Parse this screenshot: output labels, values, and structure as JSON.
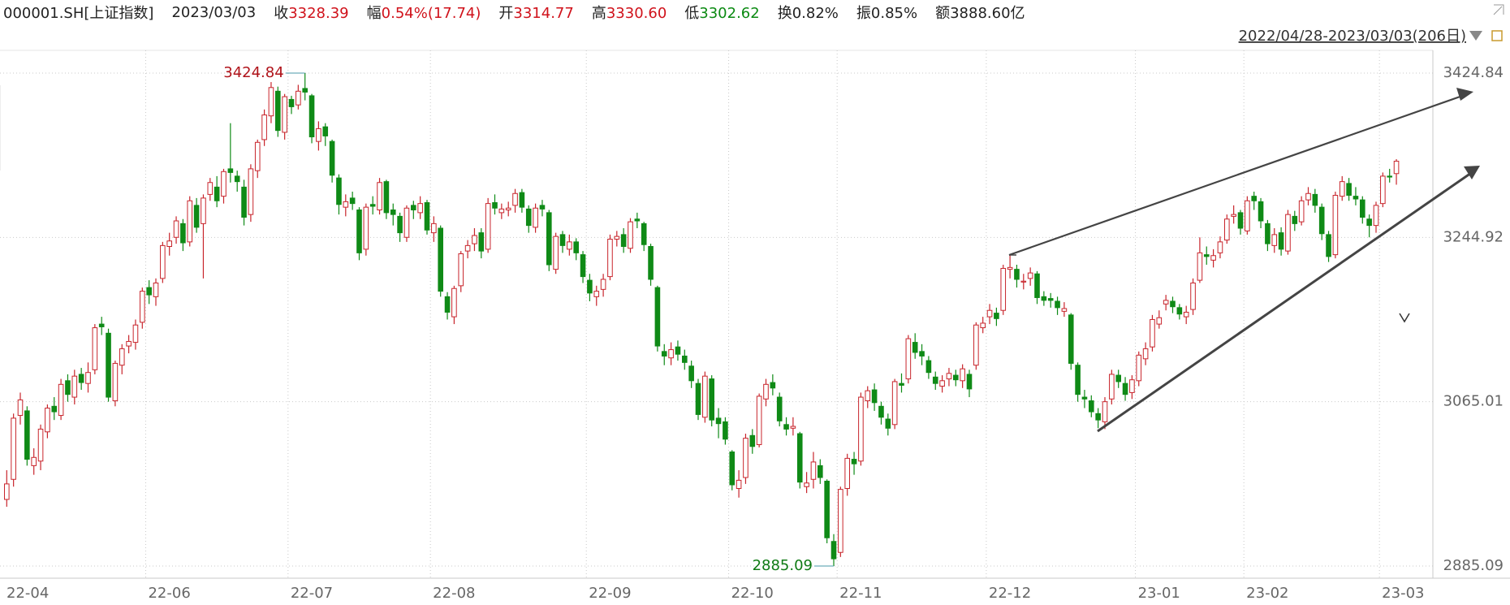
{
  "chart_data": {
    "type": "candlestick",
    "header": {
      "code": "000001.SH[上证指数]",
      "date": "2023/03/03",
      "fields": [
        {
          "label": "收",
          "value": "3328.39",
          "color": "#d0121b"
        },
        {
          "label": "幅",
          "value": "0.54%(17.74)",
          "color": "#d0121b"
        },
        {
          "label": "开",
          "value": "3314.77",
          "color": "#d0121b"
        },
        {
          "label": "高",
          "value": "3330.60",
          "color": "#d0121b"
        },
        {
          "label": "低",
          "value": "3302.62",
          "color": "#0b8a12"
        },
        {
          "label": "换",
          "value": "0.82%",
          "color": "#222222"
        },
        {
          "label": "振",
          "value": "0.85%",
          "color": "#222222"
        },
        {
          "label": "额",
          "value": "3888.60亿",
          "color": "#222222"
        }
      ]
    },
    "range_label": "2022/04/28-2023/03/03(206日)",
    "categories": [
      "22-04",
      null,
      null,
      null,
      null,
      null,
      null,
      null,
      null,
      null,
      null,
      null,
      null,
      null,
      null,
      null,
      null,
      null,
      null,
      null,
      null,
      "22-06",
      null,
      null,
      null,
      null,
      null,
      null,
      null,
      null,
      null,
      null,
      null,
      null,
      null,
      null,
      null,
      null,
      null,
      null,
      null,
      null,
      "22-07",
      null,
      null,
      null,
      null,
      null,
      null,
      null,
      null,
      null,
      null,
      null,
      null,
      null,
      null,
      null,
      null,
      null,
      null,
      null,
      null,
      "22-08",
      null,
      null,
      null,
      null,
      null,
      null,
      null,
      null,
      null,
      null,
      null,
      null,
      null,
      null,
      null,
      null,
      null,
      null,
      null,
      null,
      null,
      null,
      "22-09",
      null,
      null,
      null,
      null,
      null,
      null,
      null,
      null,
      null,
      null,
      null,
      null,
      null,
      null,
      null,
      null,
      null,
      null,
      null,
      null,
      "22-10",
      null,
      null,
      null,
      null,
      null,
      null,
      null,
      null,
      null,
      null,
      null,
      null,
      null,
      null,
      null,
      "22-11",
      null,
      null,
      null,
      null,
      null,
      null,
      null,
      null,
      null,
      null,
      null,
      null,
      null,
      null,
      null,
      null,
      null,
      null,
      null,
      null,
      null,
      "22-12",
      null,
      null,
      null,
      null,
      null,
      null,
      null,
      null,
      null,
      null,
      null,
      null,
      null,
      null,
      null,
      null,
      null,
      null,
      null,
      null,
      null,
      "23-01",
      null,
      null,
      null,
      null,
      null,
      null,
      null,
      null,
      null,
      null,
      null,
      null,
      null,
      null,
      null,
      "23-02",
      null,
      null,
      null,
      null,
      null,
      null,
      null,
      null,
      null,
      null,
      null,
      null,
      null,
      null,
      null,
      null,
      null,
      null,
      null,
      "23-03",
      null,
      null
    ],
    "open": [
      2958,
      2980,
      3050,
      3055,
      2995,
      3000,
      3032,
      3060,
      3050,
      3088,
      3070,
      3095,
      3085,
      3100,
      3150,
      3140,
      3066,
      3105,
      3126,
      3130,
      3152,
      3190,
      3180,
      3200,
      3235,
      3245,
      3260,
      3240,
      3280,
      3260,
      3292,
      3300,
      3290,
      3320,
      3312,
      3300,
      3270,
      3318,
      3352,
      3378,
      3405,
      3360,
      3396,
      3390,
      3408,
      3400,
      3350,
      3366,
      3350,
      3310,
      3278,
      3288,
      3275,
      3232,
      3281,
      3275,
      3306,
      3275,
      3268,
      3245,
      3280,
      3272,
      3283,
      3250,
      3255,
      3180,
      3158,
      3192,
      3230,
      3238,
      3250,
      3232,
      3283,
      3272,
      3275,
      3280,
      3294,
      3276,
      3256,
      3280,
      3272,
      3210,
      3248,
      3232,
      3240,
      3226,
      3198,
      3180,
      3188,
      3202,
      3243,
      3248,
      3233,
      3265,
      3260,
      3235,
      3190,
      3120,
      3113,
      3125,
      3115,
      3104,
      3085,
      3048,
      3090,
      3047,
      3043,
      3010,
      2970,
      2982,
      3028,
      3018,
      3068,
      3086,
      3070,
      3040,
      3036,
      3030,
      2972,
      2980,
      2995,
      2978,
      2912,
      2900,
      2970,
      3002,
      3000,
      3066,
      3078,
      3060,
      3046,
      3040,
      3085,
      3090,
      3130,
      3120,
      3110,
      3092,
      3082,
      3090,
      3094,
      3088,
      3095,
      3105,
      3146,
      3158,
      3162,
      3165,
      3210,
      3210,
      3196,
      3200,
      3205,
      3180,
      3178,
      3175,
      3164,
      3160,
      3105,
      3070,
      3066,
      3052,
      3043,
      3068,
      3094,
      3085,
      3075,
      3088,
      3112,
      3125,
      3150,
      3172,
      3175,
      3168,
      3158,
      3166,
      3198,
      3226,
      3220,
      3228,
      3242,
      3268,
      3272,
      3252,
      3290,
      3284,
      3260,
      3236,
      3250,
      3230,
      3268,
      3262,
      3286,
      3292,
      3278,
      3248,
      3226,
      3290,
      3304,
      3290,
      3286,
      3265,
      3258,
      3282,
      3312,
      3314.77
    ],
    "high": [
      2990,
      3052,
      3075,
      3060,
      3014,
      3040,
      3062,
      3070,
      3090,
      3095,
      3100,
      3102,
      3108,
      3150,
      3158,
      3145,
      3110,
      3128,
      3138,
      3155,
      3190,
      3198,
      3200,
      3240,
      3250,
      3268,
      3265,
      3290,
      3288,
      3292,
      3310,
      3312,
      3320,
      3370,
      3318,
      3308,
      3325,
      3352,
      3385,
      3415,
      3410,
      3402,
      3400,
      3412,
      3424.84,
      3402,
      3372,
      3370,
      3352,
      3314,
      3292,
      3295,
      3278,
      3282,
      3290,
      3310,
      3308,
      3282,
      3272,
      3280,
      3285,
      3290,
      3286,
      3268,
      3258,
      3185,
      3192,
      3230,
      3242,
      3255,
      3255,
      3288,
      3292,
      3282,
      3284,
      3298,
      3298,
      3280,
      3282,
      3286,
      3275,
      3250,
      3252,
      3248,
      3244,
      3230,
      3205,
      3192,
      3205,
      3248,
      3252,
      3255,
      3266,
      3272,
      3262,
      3238,
      3192,
      3128,
      3130,
      3132,
      3122,
      3110,
      3090,
      3098,
      3094,
      3058,
      3048,
      3012,
      2990,
      3030,
      3035,
      3074,
      3090,
      3095,
      3075,
      3048,
      3048,
      3032,
      2988,
      3010,
      3002,
      2980,
      2920,
      2972,
      3008,
      3010,
      3075,
      3082,
      3085,
      3065,
      3052,
      3090,
      3096,
      3138,
      3140,
      3128,
      3115,
      3098,
      3094,
      3102,
      3100,
      3106,
      3100,
      3152,
      3158,
      3172,
      3168,
      3215,
      3226,
      3215,
      3205,
      3212,
      3208,
      3186,
      3184,
      3180,
      3174,
      3162,
      3108,
      3078,
      3072,
      3058,
      3070,
      3100,
      3100,
      3092,
      3094,
      3120,
      3130,
      3160,
      3165,
      3182,
      3180,
      3172,
      3170,
      3200,
      3245,
      3235,
      3232,
      3246,
      3270,
      3280,
      3275,
      3290,
      3295,
      3288,
      3264,
      3255,
      3256,
      3275,
      3274,
      3290,
      3300,
      3298,
      3282,
      3252,
      3295,
      3312,
      3310,
      3300,
      3290,
      3270,
      3284,
      3316,
      3320,
      3330.6
    ],
    "low": [
      2950,
      2972,
      3040,
      2995,
      2985,
      2990,
      3025,
      3045,
      3045,
      3065,
      3062,
      3078,
      3075,
      3095,
      3138,
      3065,
      3060,
      3095,
      3118,
      3122,
      3145,
      3172,
      3170,
      3195,
      3225,
      3238,
      3230,
      3235,
      3250,
      3200,
      3285,
      3278,
      3282,
      3305,
      3295,
      3258,
      3262,
      3310,
      3345,
      3370,
      3355,
      3352,
      3380,
      3385,
      3395,
      3348,
      3340,
      3345,
      3305,
      3270,
      3268,
      3275,
      3220,
      3225,
      3270,
      3270,
      3265,
      3258,
      3240,
      3240,
      3265,
      3265,
      3248,
      3240,
      3180,
      3155,
      3150,
      3185,
      3222,
      3230,
      3222,
      3228,
      3270,
      3265,
      3268,
      3272,
      3272,
      3250,
      3250,
      3268,
      3208,
      3205,
      3228,
      3225,
      3220,
      3195,
      3175,
      3170,
      3180,
      3198,
      3235,
      3228,
      3228,
      3255,
      3230,
      3192,
      3120,
      3105,
      3105,
      3110,
      3100,
      3080,
      3045,
      3042,
      3038,
      3025,
      3018,
      2968,
      2960,
      2975,
      3008,
      3015,
      3060,
      3072,
      3038,
      3028,
      3028,
      2970,
      2965,
      2970,
      2975,
      2910,
      2885.09,
      2895,
      2962,
      2985,
      2995,
      3058,
      3055,
      3040,
      3028,
      3035,
      3075,
      3085,
      3112,
      3105,
      3090,
      3078,
      3075,
      3082,
      3082,
      3080,
      3070,
      3100,
      3140,
      3150,
      3148,
      3160,
      3200,
      3190,
      3188,
      3192,
      3172,
      3170,
      3168,
      3160,
      3158,
      3100,
      3065,
      3058,
      3048,
      3036,
      3035,
      3062,
      3080,
      3066,
      3068,
      3082,
      3105,
      3120,
      3145,
      3165,
      3162,
      3155,
      3150,
      3160,
      3195,
      3215,
      3212,
      3222,
      3238,
      3260,
      3248,
      3248,
      3275,
      3255,
      3230,
      3228,
      3225,
      3226,
      3252,
      3258,
      3280,
      3272,
      3242,
      3218,
      3222,
      3285,
      3285,
      3280,
      3260,
      3245,
      3250,
      3278,
      3305,
      3302.62
    ],
    "close": [
      2975,
      3047,
      3067,
      3002,
      3004,
      3035,
      3058,
      3054,
      3084,
      3073,
      3093,
      3086,
      3097,
      3146,
      3147,
      3070,
      3107,
      3123,
      3131,
      3149,
      3186,
      3182,
      3195,
      3236,
      3241,
      3263,
      3239,
      3285,
      3256,
      3288,
      3305,
      3285,
      3317,
      3316,
      3306,
      3267,
      3320,
      3349,
      3379,
      3409,
      3362,
      3399,
      3388,
      3405,
      3404,
      3355,
      3364,
      3356,
      3313,
      3281,
      3284,
      3282,
      3228,
      3278,
      3279,
      3305,
      3272,
      3270,
      3250,
      3277,
      3275,
      3282,
      3253,
      3260,
      3186,
      3163,
      3189,
      3227,
      3236,
      3247,
      3230,
      3282,
      3277,
      3276,
      3277,
      3293,
      3278,
      3258,
      3277,
      3276,
      3215,
      3246,
      3236,
      3240,
      3228,
      3202,
      3184,
      3186,
      3199,
      3243,
      3246,
      3235,
      3262,
      3263,
      3237,
      3199,
      3126,
      3115,
      3122,
      3117,
      3108,
      3088,
      3051,
      3093,
      3045,
      3041,
      3024,
      2974,
      2979,
      3025,
      3016,
      3071,
      3084,
      3080,
      3044,
      3035,
      3038,
      2977,
      2976,
      2999,
      2982,
      2916,
      2893,
      2969,
      3003,
      2997,
      3070,
      3077,
      3064,
      3048,
      3036,
      3087,
      3083,
      3134,
      3119,
      3115,
      3097,
      3085,
      3088,
      3096,
      3089,
      3101,
      3079,
      3149,
      3151,
      3165,
      3156,
      3211,
      3212,
      3199,
      3197,
      3206,
      3179,
      3176,
      3176,
      3168,
      3167,
      3107,
      3073,
      3068,
      3054,
      3045,
      3065,
      3095,
      3087,
      3073,
      3089,
      3116,
      3123,
      3155,
      3157,
      3176,
      3169,
      3161,
      3163,
      3195,
      3228,
      3224,
      3225,
      3240,
      3265,
      3270,
      3255,
      3285,
      3285,
      3263,
      3238,
      3248,
      3232,
      3270,
      3260,
      3285,
      3293,
      3280,
      3249,
      3224,
      3291,
      3306,
      3291,
      3287,
      3267,
      3258,
      3280,
      3312,
      3311,
      3328.39
    ],
    "up_color": "#c8252c",
    "down_color": "#0f8a16",
    "max_label": 3424.84,
    "min_label": 2885.09,
    "ylim": [
      2885.09,
      3424.84
    ],
    "yticks": [
      2885.09,
      3065.01,
      3244.92,
      3424.84
    ],
    "grid": true
  }
}
